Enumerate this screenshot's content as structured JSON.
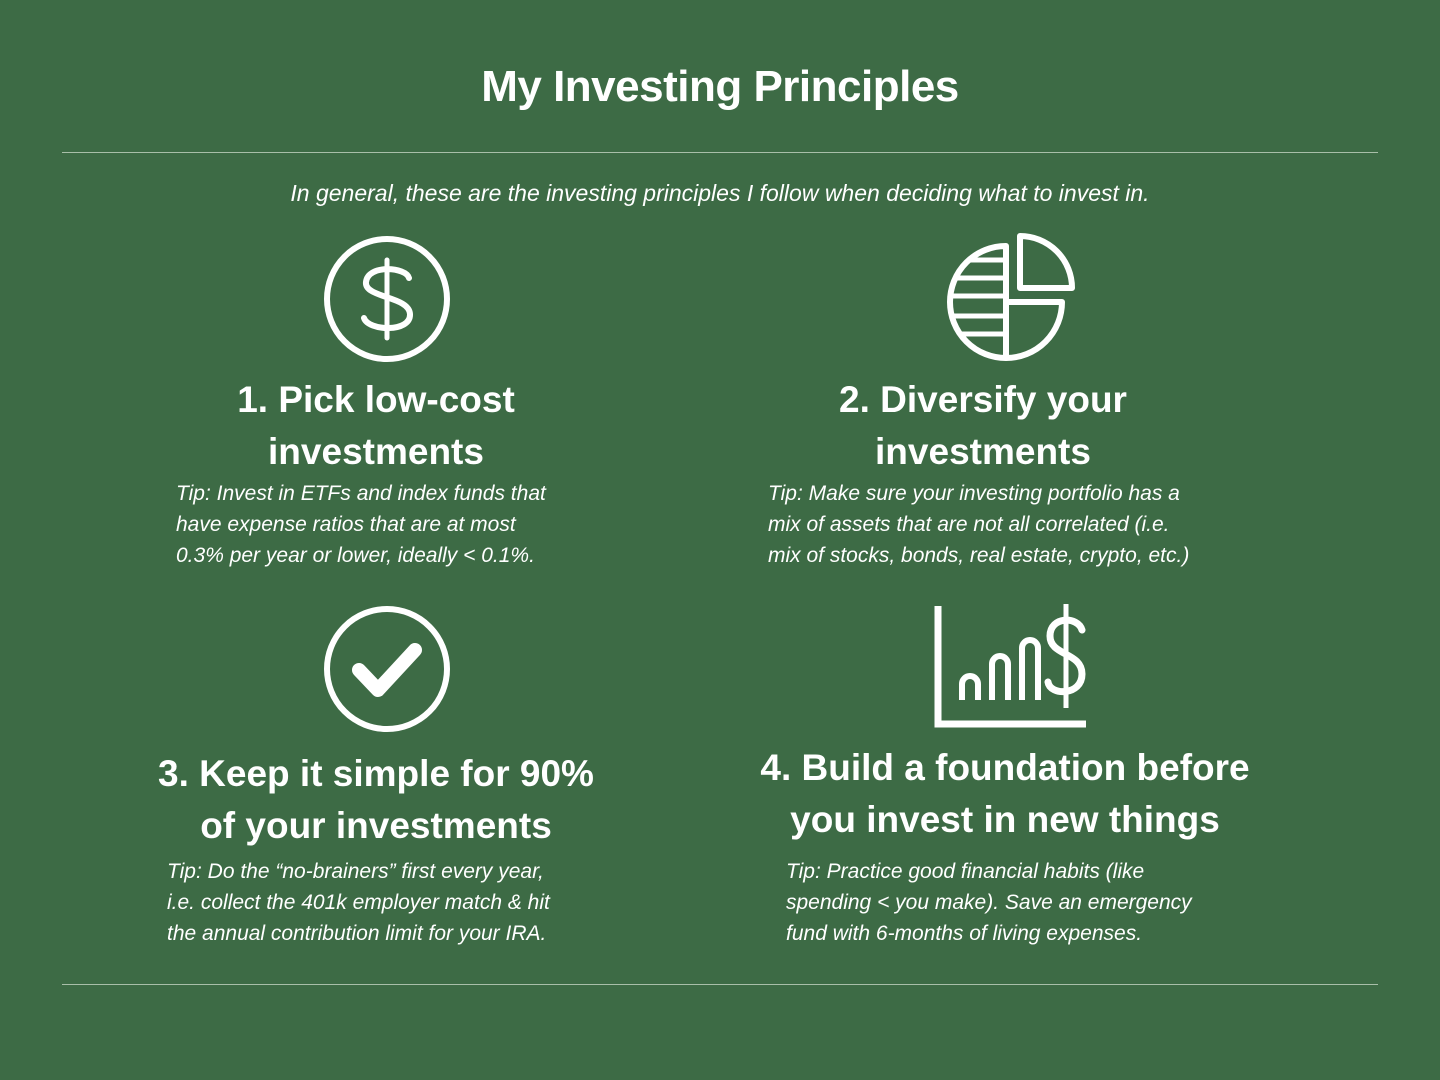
{
  "page": {
    "title": "My Investing Principles",
    "intro": "In general, these are the investing principles I follow when deciding what to invest in."
  },
  "principles": [
    {
      "heading_line1": "1. Pick low-cost",
      "heading_line2": "investments",
      "tip_line1": "Tip: Invest in ETFs and index funds that",
      "tip_line2": "have expense ratios that are at most",
      "tip_line3": "0.3% per year or lower, ideally < 0.1%.",
      "icon": "dollar-circle-icon"
    },
    {
      "heading_line1": "2. Diversify your",
      "heading_line2": "investments",
      "tip_line1": "Tip: Make sure your investing portfolio has a",
      "tip_line2": "mix of assets that are not all correlated (i.e.",
      "tip_line3": "mix of stocks, bonds, real estate, crypto, etc.)",
      "icon": "pie-chart-icon"
    },
    {
      "heading_line1": "3. Keep it simple for 90%",
      "heading_line2": "of your investments",
      "tip_line1": "Tip: Do the “no-brainers” first every year,",
      "tip_line2": "i.e. collect the 401k employer match & hit",
      "tip_line3": "the annual contribution limit for your IRA.",
      "icon": "checkmark-circle-icon"
    },
    {
      "heading_line1": "4. Build a foundation before",
      "heading_line2": "you invest in new things",
      "tip_line1": "Tip: Practice good financial habits (like",
      "tip_line2": "spending < you make). Save an emergency",
      "tip_line3": "fund with 6-months of living expenses.",
      "icon": "growth-chart-dollar-icon"
    }
  ],
  "colors": {
    "background": "#3d6b45",
    "foreground": "#ffffff",
    "divider": "#a9bfa9"
  }
}
